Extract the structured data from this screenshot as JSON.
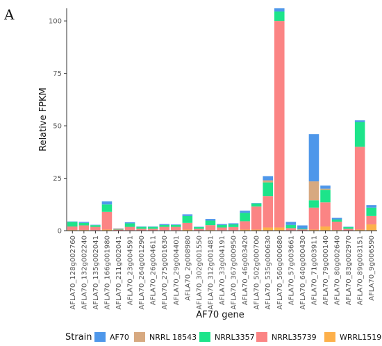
{
  "panel_label": "A",
  "colors": {
    "AF70": "#4e97ea",
    "NRRL 18543": "#d7a980",
    "NRRL3357": "#1de48a",
    "NRRL35739": "#fb8484",
    "WRRL1519": "#fdb04a"
  },
  "chart_data": {
    "type": "bar",
    "stacked": true,
    "xlabel": "AF70 gene",
    "ylabel": "Relative FPKM",
    "ylim": [
      0,
      106
    ],
    "yticks": [
      0,
      25,
      50,
      75,
      100
    ],
    "grid": false,
    "legend_title": "Strain",
    "legend_position": "bottom",
    "categories": [
      "AFLA70_128g002760",
      "AFLA70_132g002240",
      "AFLA70_135g002041",
      "AFLA70_166g001980",
      "AFLA70_211g002041",
      "AFLA70_23g004591",
      "AFLA70_264g001290",
      "AFLA70_26g004611",
      "AFLA70_275g001630",
      "AFLA70_29g004401",
      "AFLA70_2g008980",
      "AFLA70_302g001550",
      "AFLA70_312g001481",
      "AFLA70_33g004191",
      "AFLA70_367g000950",
      "AFLA70_46g003420",
      "AFLA70_502g000700",
      "AFLA70_535g000630",
      "AFLA70_560g000680",
      "AFLA70_57g003661",
      "AFLA70_640g000430",
      "AFLA70_71g003911",
      "AFLA70_79g000140",
      "AFLA70_80g002640",
      "AFLA70_83g002970",
      "AFLA70_89g003151",
      "AFLA70_9g006590"
    ],
    "series": [
      {
        "name": "WRRL1519",
        "values": [
          0.3,
          0.3,
          0.2,
          0.5,
          0.1,
          0.2,
          0.1,
          0.1,
          0.2,
          0.2,
          0.5,
          0.1,
          0.3,
          0.2,
          0.2,
          0.5,
          0.5,
          1.5,
          1.5,
          0.2,
          0.1,
          0.5,
          2.0,
          0.3,
          0.1,
          0.5,
          3.0
        ]
      },
      {
        "name": "NRRL35739",
        "values": [
          1.7,
          2.2,
          1.6,
          8.5,
          0.4,
          1.6,
          0.8,
          0.8,
          1.6,
          1.6,
          3.2,
          0.8,
          2.3,
          1.3,
          1.5,
          4.0,
          11.0,
          15.0,
          98.5,
          1.0,
          0.5,
          10.5,
          11.5,
          4.0,
          0.8,
          39.5,
          4.0
        ]
      },
      {
        "name": "NRRL3357",
        "values": [
          2.2,
          1.2,
          0.8,
          3.5,
          0.2,
          1.7,
          0.9,
          0.9,
          0.9,
          0.9,
          3.3,
          0.8,
          2.2,
          1.2,
          1.3,
          4.0,
          1.5,
          6.5,
          4.5,
          1.5,
          0.4,
          3.5,
          6.0,
          1.0,
          0.8,
          11.8,
          4.0
        ]
      },
      {
        "name": "NRRL 18543",
        "values": [
          0,
          0,
          0,
          0,
          0.3,
          0,
          0,
          0,
          0,
          0,
          0,
          0,
          0,
          0,
          0,
          0,
          0,
          1.0,
          0,
          0,
          0,
          9.0,
          0.5,
          0,
          0,
          0,
          0
        ]
      },
      {
        "name": "AF70",
        "values": [
          0.2,
          0.5,
          0.2,
          1.5,
          0.1,
          0.5,
          0.2,
          0.2,
          0.5,
          0.3,
          0.8,
          0.2,
          0.8,
          0.5,
          0.5,
          1.0,
          0.2,
          2.0,
          1.5,
          1.5,
          1.5,
          22.5,
          1.5,
          0.8,
          0.2,
          0.8,
          1.2
        ]
      }
    ],
    "legend_order": [
      "AF70",
      "NRRL 18543",
      "NRRL3357",
      "NRRL35739",
      "WRRL1519"
    ]
  }
}
